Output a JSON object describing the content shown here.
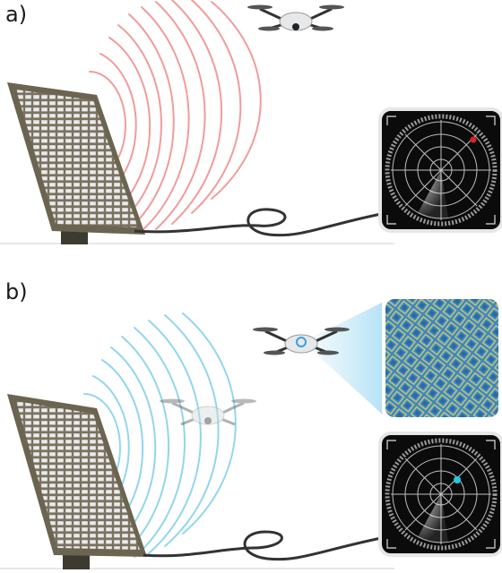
{
  "panels": [
    {
      "label": "a)",
      "wave_color": "#f08a8a",
      "target_color": "#e02020",
      "drone_state": "detected"
    },
    {
      "label": "b)",
      "wave_color": "#7fd0ea",
      "target_color": "#22c8e6",
      "drone_state": "cloaked",
      "metasurface_color": "#3a86c8",
      "beam_color": "#8fd3f2"
    }
  ],
  "colors": {
    "panel_frame": "#6b6450",
    "panel_cells": "#e8e8ea",
    "radar_screen": "#0b0b0b",
    "radar_grid": "#bfbfbf",
    "cable": "#333333",
    "ground_line": "#bdbdbd"
  }
}
